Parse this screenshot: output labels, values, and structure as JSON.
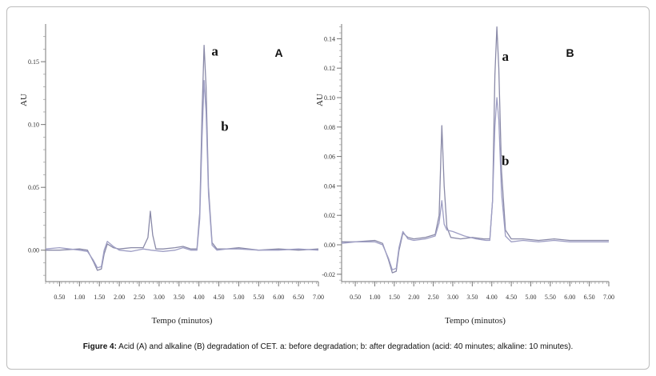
{
  "caption": {
    "label": "Figure 4:",
    "text": "Acid (A) and alkaline (B) degradation of CET. a: before degradation; b: after degradation (acid: 40 minutes; alkaline: 10 minutes)."
  },
  "chart_data": [
    {
      "type": "line",
      "panel_label": "A",
      "xlabel": "Tempo (minutos)",
      "ylabel": "AU",
      "xlim": [
        0.15,
        7.0
      ],
      "ylim": [
        -0.025,
        0.18
      ],
      "x_ticks": [
        "0.50",
        "1.00",
        "1.50",
        "2.00",
        "2.50",
        "3.00",
        "3.50",
        "4.00",
        "4.50",
        "5.00",
        "5.50",
        "6.00",
        "6.50",
        "7.00"
      ],
      "y_ticks": [
        "0.00",
        "0.05",
        "0.10",
        "0.15"
      ],
      "annotations": [
        {
          "text": "a",
          "x": 4.4,
          "y": 0.155
        },
        {
          "text": "b",
          "x": 4.65,
          "y": 0.095
        }
      ],
      "series": [
        {
          "name": "a",
          "color": "#8a8aa8",
          "x": [
            0.15,
            0.5,
            1.0,
            1.2,
            1.35,
            1.45,
            1.55,
            1.62,
            1.7,
            1.85,
            2.0,
            2.3,
            2.6,
            2.72,
            2.78,
            2.84,
            2.92,
            3.1,
            3.4,
            3.6,
            3.8,
            3.95,
            4.02,
            4.08,
            4.13,
            4.18,
            4.24,
            4.33,
            4.45,
            4.7,
            5.0,
            5.5,
            6.0,
            6.5,
            7.0
          ],
          "y": [
            0.0,
            0.0,
            0.001,
            0.0,
            -0.009,
            -0.016,
            -0.015,
            -0.003,
            0.005,
            0.002,
            0.001,
            0.002,
            0.002,
            0.01,
            0.031,
            0.012,
            0.001,
            0.001,
            0.002,
            0.003,
            0.001,
            0.001,
            0.03,
            0.11,
            0.163,
            0.13,
            0.05,
            0.006,
            0.001,
            0.001,
            0.002,
            0.0,
            0.001,
            0.0,
            0.001
          ]
        },
        {
          "name": "b",
          "color": "#9e9ec4",
          "x": [
            0.15,
            0.5,
            1.0,
            1.2,
            1.35,
            1.45,
            1.55,
            1.62,
            1.7,
            1.85,
            2.0,
            2.3,
            2.6,
            2.8,
            3.1,
            3.4,
            3.6,
            3.8,
            3.95,
            4.02,
            4.08,
            4.13,
            4.18,
            4.24,
            4.33,
            4.45,
            4.7,
            5.0,
            5.5,
            6.0,
            6.5,
            7.0
          ],
          "y": [
            0.001,
            0.002,
            0.0,
            -0.001,
            -0.008,
            -0.014,
            -0.013,
            0.0,
            0.007,
            0.003,
            0.0,
            -0.001,
            0.001,
            0.0,
            -0.001,
            0.0,
            0.002,
            0.0,
            0.0,
            0.025,
            0.09,
            0.135,
            0.11,
            0.045,
            0.004,
            0.0,
            0.001,
            0.001,
            0.0,
            0.0,
            0.001,
            0.0
          ]
        }
      ]
    },
    {
      "type": "line",
      "panel_label": "B",
      "xlabel": "Tempo (minutos)",
      "ylabel": "AU",
      "xlim": [
        0.15,
        7.0
      ],
      "ylim": [
        -0.025,
        0.15
      ],
      "x_ticks": [
        "0.50",
        "1.00",
        "1.50",
        "2.00",
        "2.50",
        "3.00",
        "3.50",
        "4.00",
        "4.50",
        "5.00",
        "5.50",
        "6.00",
        "6.50",
        "7.00"
      ],
      "y_ticks": [
        "-0.02",
        "0.00",
        "0.02",
        "0.04",
        "0.06",
        "0.08",
        "0.10",
        "0.12",
        "0.14"
      ],
      "annotations": [
        {
          "text": "a",
          "x": 4.35,
          "y": 0.125
        },
        {
          "text": "b",
          "x": 4.35,
          "y": 0.054
        }
      ],
      "series": [
        {
          "name": "a",
          "color": "#8a8aa8",
          "x": [
            0.15,
            0.5,
            1.0,
            1.2,
            1.35,
            1.45,
            1.55,
            1.62,
            1.72,
            1.85,
            2.0,
            2.3,
            2.55,
            2.65,
            2.72,
            2.78,
            2.85,
            2.95,
            3.2,
            3.5,
            3.8,
            3.95,
            4.02,
            4.08,
            4.13,
            4.18,
            4.25,
            4.35,
            4.5,
            4.8,
            5.2,
            5.6,
            6.0,
            6.5,
            7.0
          ],
          "y": [
            0.002,
            0.002,
            0.003,
            0.001,
            -0.01,
            -0.019,
            -0.018,
            -0.004,
            0.008,
            0.005,
            0.004,
            0.005,
            0.007,
            0.02,
            0.081,
            0.04,
            0.012,
            0.005,
            0.004,
            0.005,
            0.004,
            0.004,
            0.03,
            0.115,
            0.148,
            0.12,
            0.05,
            0.01,
            0.004,
            0.004,
            0.003,
            0.004,
            0.003,
            0.003,
            0.003
          ]
        },
        {
          "name": "b",
          "color": "#9e9ec4",
          "x": [
            0.15,
            0.5,
            1.0,
            1.2,
            1.35,
            1.45,
            1.55,
            1.62,
            1.72,
            1.85,
            2.0,
            2.3,
            2.55,
            2.65,
            2.72,
            2.78,
            2.85,
            3.0,
            3.3,
            3.6,
            3.85,
            3.95,
            4.02,
            4.08,
            4.13,
            4.18,
            4.25,
            4.35,
            4.5,
            4.8,
            5.2,
            5.6,
            6.0,
            6.5,
            7.0
          ],
          "y": [
            0.001,
            0.002,
            0.002,
            0.0,
            -0.009,
            -0.017,
            -0.016,
            -0.002,
            0.009,
            0.004,
            0.003,
            0.004,
            0.006,
            0.015,
            0.03,
            0.014,
            0.01,
            0.009,
            0.006,
            0.004,
            0.003,
            0.003,
            0.03,
            0.08,
            0.1,
            0.085,
            0.035,
            0.006,
            0.002,
            0.003,
            0.002,
            0.003,
            0.002,
            0.002,
            0.002
          ]
        }
      ]
    }
  ]
}
